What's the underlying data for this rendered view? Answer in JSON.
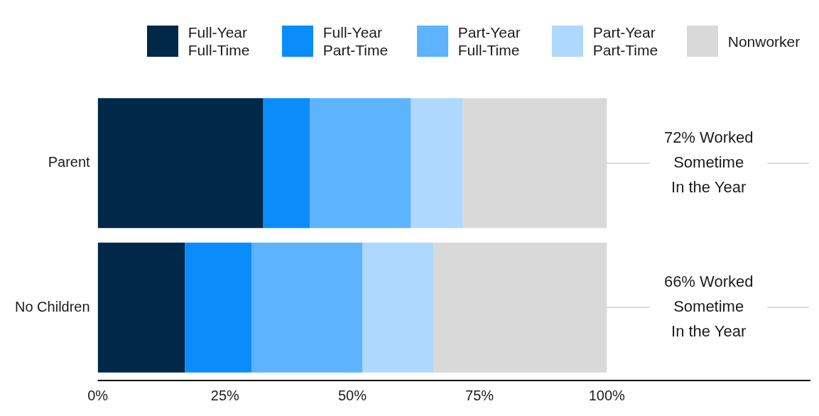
{
  "chart_data": {
    "type": "bar",
    "orientation": "horizontal",
    "stacked": true,
    "categories": [
      "Parent",
      "No Children"
    ],
    "series": [
      {
        "name": "Full-Year Full-Time",
        "color": "#002849",
        "values": [
          32.5,
          17.1
        ]
      },
      {
        "name": "Full-Year Part-Time",
        "color": "#0b8cfb",
        "values": [
          9.2,
          13.1
        ]
      },
      {
        "name": "Part-Year Full-Time",
        "color": "#5db3fd",
        "values": [
          19.8,
          21.8
        ]
      },
      {
        "name": "Part-Year Part-Time",
        "color": "#aed8fd",
        "values": [
          10.2,
          14.0
        ]
      },
      {
        "name": "Nonworker",
        "color": "#d9d9d9",
        "values": [
          28.3,
          34.0
        ]
      }
    ],
    "xlim": [
      0,
      140
    ],
    "xticks": [
      {
        "value": 0,
        "label": "0%"
      },
      {
        "value": 25,
        "label": "25%"
      },
      {
        "value": 50,
        "label": "50%"
      },
      {
        "value": 75,
        "label": "75%"
      },
      {
        "value": 100,
        "label": "100%"
      }
    ],
    "grid": false,
    "legend": "top",
    "annotations": [
      "72% Worked Sometime In the Year",
      "66% Worked Sometime In the Year"
    ]
  }
}
